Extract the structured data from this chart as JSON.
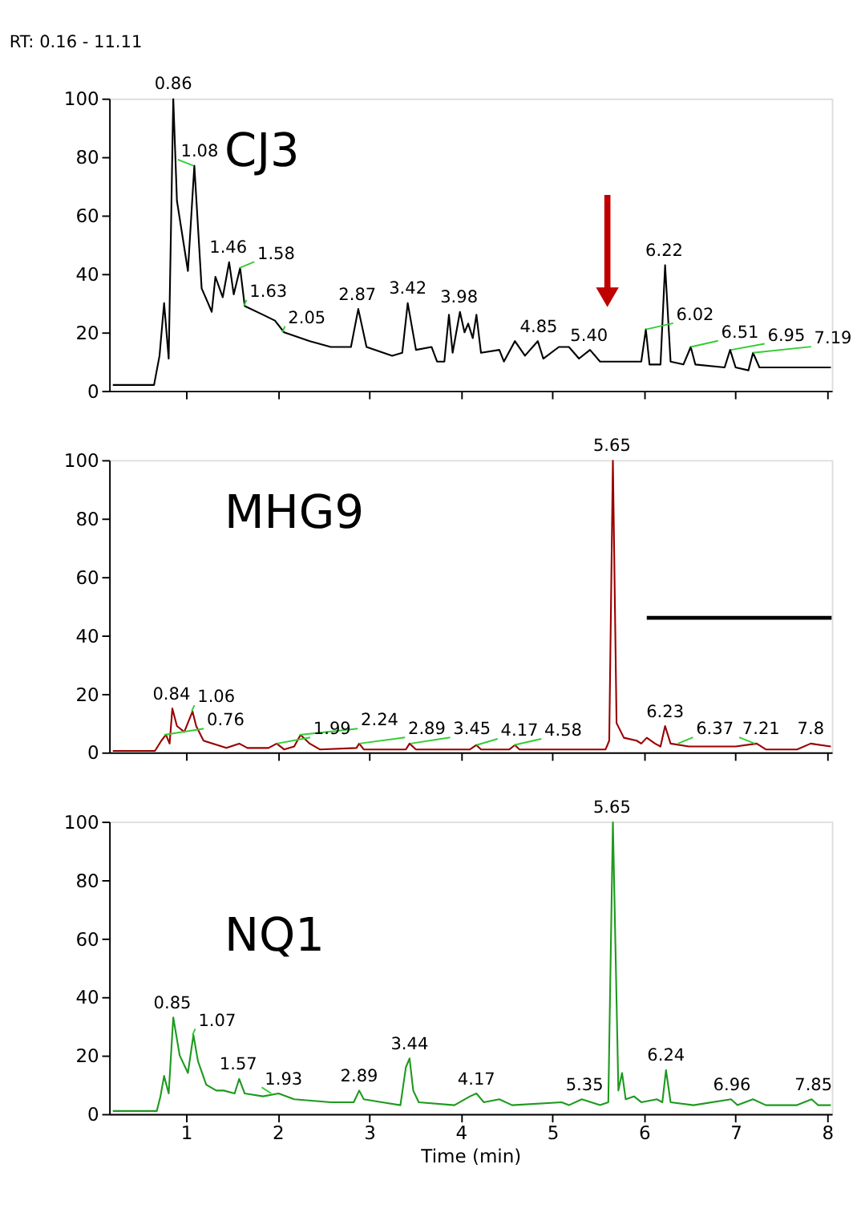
{
  "chart_data": [
    {
      "type": "line",
      "title": "RT: 0.16 - 11.11",
      "xlim": [
        0.16,
        8.05
      ],
      "xticks": [
        1,
        2,
        3,
        4,
        5,
        6,
        7,
        8
      ],
      "ylim": [
        0,
        100
      ],
      "yticks": [
        0,
        20,
        40,
        60,
        80,
        100
      ],
      "tick_labels": "y",
      "line_style": "solid",
      "series": [
        {
          "name": "CJ3",
          "color": "#000000",
          "x": [
            0.2,
            0.65,
            0.71,
            0.76,
            0.81,
            0.86,
            0.9,
            1.02,
            1.09,
            1.17,
            1.24,
            1.28,
            1.32,
            1.4,
            1.47,
            1.52,
            1.59,
            1.64,
            1.84,
            1.97,
            2.07,
            2.35,
            2.58,
            2.72,
            2.8,
            2.88,
            2.97,
            3.25,
            3.36,
            3.42,
            3.51,
            3.68,
            3.74,
            3.82,
            3.87,
            3.91,
            3.99,
            4.04,
            4.08,
            4.13,
            4.17,
            4.22,
            4.42,
            4.47,
            4.59,
            4.7,
            4.84,
            4.9,
            5.07,
            5.18,
            5.29,
            5.41,
            5.52,
            5.75,
            5.97,
            6.02,
            6.06,
            6.18,
            6.23,
            6.29,
            6.43,
            6.51,
            6.56,
            6.88,
            6.94,
            7.0,
            7.14,
            7.19,
            7.26,
            7.67,
            8.04
          ],
          "values": [
            2,
            2,
            12,
            30,
            11,
            100,
            65,
            41,
            77,
            35,
            30,
            27,
            39,
            32,
            44,
            33,
            42,
            29,
            26,
            24,
            20,
            17,
            15,
            15,
            15,
            28,
            15,
            12,
            13,
            30,
            14,
            15,
            10,
            10,
            26,
            13,
            27,
            20,
            23,
            18,
            26,
            13,
            14,
            10,
            17,
            12,
            17,
            11,
            15,
            15,
            11,
            14,
            10,
            10,
            10,
            21,
            9,
            9,
            43,
            10,
            9,
            15,
            9,
            8,
            14,
            8,
            7,
            13,
            8,
            8,
            8
          ]
        }
      ],
      "annotations": [
        {
          "text": "0.86",
          "x": 0.86,
          "y": 100
        },
        {
          "text": "1.08",
          "x": 1.08,
          "y": 77
        },
        {
          "text": "1.46",
          "x": 1.46,
          "y": 44
        },
        {
          "text": "1.58",
          "x": 1.58,
          "y": 42
        },
        {
          "text": "1.63",
          "x": 1.63,
          "y": 29
        },
        {
          "text": "2.05",
          "x": 2.05,
          "y": 20
        },
        {
          "text": "2.87",
          "x": 2.87,
          "y": 28
        },
        {
          "text": "3.42",
          "x": 3.42,
          "y": 30
        },
        {
          "text": "3.98",
          "x": 3.98,
          "y": 27
        },
        {
          "text": "4.85",
          "x": 4.85,
          "y": 17
        },
        {
          "text": "5.40",
          "x": 5.4,
          "y": 14
        },
        {
          "text": "6.02",
          "x": 6.02,
          "y": 21
        },
        {
          "text": "6.22",
          "x": 6.22,
          "y": 43
        },
        {
          "text": "6.51",
          "x": 6.51,
          "y": 15
        },
        {
          "text": "6.95",
          "x": 6.95,
          "y": 14
        },
        {
          "text": "7.19",
          "x": 7.19,
          "y": 13
        }
      ]
    },
    {
      "type": "line",
      "xlim": [
        0.16,
        8.05
      ],
      "xticks": [
        1,
        2,
        3,
        4,
        5,
        6,
        7,
        8
      ],
      "ylim": [
        0,
        100
      ],
      "yticks": [
        0,
        20,
        40,
        60,
        80,
        100
      ],
      "tick_labels": "y",
      "line_style": "solid",
      "series": [
        {
          "name": "MHG9",
          "color": "#990000",
          "x": [
            0.2,
            0.66,
            0.73,
            0.78,
            0.82,
            0.85,
            0.9,
            0.98,
            1.07,
            1.11,
            1.19,
            1.44,
            1.58,
            1.67,
            1.9,
            1.99,
            2.07,
            2.18,
            2.25,
            2.35,
            2.46,
            2.86,
            2.89,
            2.94,
            3.4,
            3.44,
            3.51,
            4.1,
            4.17,
            4.22,
            4.53,
            4.59,
            4.64,
            5.58,
            5.62,
            5.66,
            5.7,
            5.78,
            5.92,
            5.97,
            6.03,
            6.12,
            6.18,
            6.23,
            6.29,
            6.49,
            6.94,
            7.0,
            7.23,
            7.33,
            7.67,
            7.82,
            8.04
          ],
          "values": [
            0.5,
            0.5,
            4,
            6,
            3,
            15,
            9,
            7,
            14,
            9,
            4,
            1.5,
            3,
            1.5,
            1.5,
            3,
            1,
            2,
            6,
            3,
            1,
            1.5,
            3,
            1,
            1,
            3,
            1,
            1,
            2.5,
            1,
            1,
            2.5,
            1,
            1,
            4,
            100,
            10,
            5,
            4,
            3,
            5,
            3,
            2,
            9,
            3,
            2,
            2,
            2,
            3,
            1,
            1,
            3,
            2
          ]
        },
        {
          "color": "#000000",
          "x": [
            6.03,
            8.05
          ],
          "values": [
            46,
            46
          ]
        }
      ],
      "annotations": [
        {
          "text": "0.76",
          "x": 0.76,
          "y": 6
        },
        {
          "text": "0.84",
          "x": 0.84,
          "y": 15
        },
        {
          "text": "1.06",
          "x": 1.06,
          "y": 14
        },
        {
          "text": "1.99",
          "x": 1.99,
          "y": 3
        },
        {
          "text": "2.24",
          "x": 2.24,
          "y": 6
        },
        {
          "text": "2.89",
          "x": 2.89,
          "y": 3
        },
        {
          "text": "3.45",
          "x": 3.45,
          "y": 3
        },
        {
          "text": "4.17",
          "x": 4.17,
          "y": 2.5
        },
        {
          "text": "4.58",
          "x": 4.58,
          "y": 2.5
        },
        {
          "text": "5.65",
          "x": 5.65,
          "y": 100
        },
        {
          "text": "6.23",
          "x": 6.23,
          "y": 9
        },
        {
          "text": "6.37",
          "x": 6.37,
          "y": 3
        },
        {
          "text": "7.21",
          "x": 7.21,
          "y": 3
        },
        {
          "text": "7.8",
          "x": 7.82,
          "y": 3
        }
      ]
    },
    {
      "type": "line",
      "xlabel": "Time (min)",
      "xlim": [
        0.16,
        8.05
      ],
      "xticks": [
        1,
        2,
        3,
        4,
        5,
        6,
        7,
        8
      ],
      "ylim": [
        0,
        100
      ],
      "yticks": [
        0,
        20,
        40,
        60,
        80,
        100
      ],
      "line_style": "solid",
      "series": [
        {
          "name": "NQ1",
          "color": "#1e9a1e",
          "x": [
            0.2,
            0.68,
            0.72,
            0.76,
            0.81,
            0.86,
            0.93,
            1.02,
            1.08,
            1.13,
            1.22,
            1.33,
            1.41,
            1.53,
            1.58,
            1.64,
            1.84,
            2.01,
            2.18,
            2.58,
            2.83,
            2.89,
            2.94,
            3.14,
            3.34,
            3.4,
            3.44,
            3.48,
            3.54,
            3.93,
            4.1,
            4.17,
            4.25,
            4.42,
            4.56,
            5.1,
            5.18,
            5.32,
            5.52,
            5.61,
            5.66,
            5.72,
            5.76,
            5.8,
            5.89,
            5.97,
            6.14,
            6.2,
            6.24,
            6.29,
            6.54,
            6.95,
            7.02,
            7.19,
            7.33,
            7.67,
            7.83,
            7.9,
            8.04
          ],
          "values": [
            1,
            1,
            6,
            13,
            7,
            33,
            20,
            14,
            27,
            18,
            10,
            8,
            8,
            7,
            12,
            7,
            6,
            7,
            5,
            4,
            4,
            8,
            5,
            4,
            3,
            16,
            19,
            8,
            4,
            3,
            6,
            7,
            4,
            5,
            3,
            4,
            3,
            5,
            3,
            4,
            100,
            8,
            14,
            5,
            6,
            4,
            5,
            4,
            15,
            4,
            3,
            5,
            3,
            5,
            3,
            3,
            5,
            3,
            3
          ]
        }
      ],
      "annotations": [
        {
          "text": "0.85",
          "x": 0.85,
          "y": 33
        },
        {
          "text": "1.07",
          "x": 1.07,
          "y": 27
        },
        {
          "text": "1.57",
          "x": 1.57,
          "y": 12
        },
        {
          "text": "1.93",
          "x": 1.93,
          "y": 7
        },
        {
          "text": "2.89",
          "x": 2.89,
          "y": 8
        },
        {
          "text": "3.44",
          "x": 3.44,
          "y": 19
        },
        {
          "text": "4.17",
          "x": 4.17,
          "y": 7
        },
        {
          "text": "5.35",
          "x": 5.35,
          "y": 5
        },
        {
          "text": "5.65",
          "x": 5.65,
          "y": 100
        },
        {
          "text": "6.24",
          "x": 6.24,
          "y": 15
        },
        {
          "text": "6.96",
          "x": 6.96,
          "y": 5
        },
        {
          "text": "7.85",
          "x": 7.85,
          "y": 5
        }
      ]
    }
  ]
}
